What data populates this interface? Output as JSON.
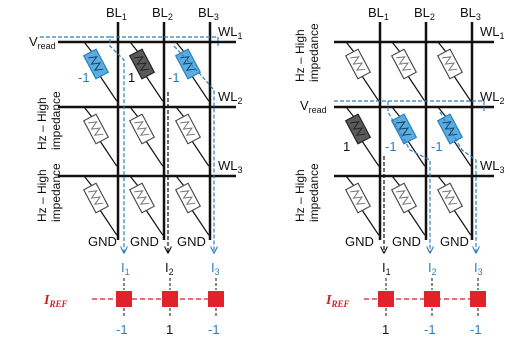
{
  "colors": {
    "wire": "#111111",
    "selected_cell": "#5aaedf",
    "high_cell": "#5a5a5a",
    "current_blue": "#2f7fc0",
    "iref_red": "#d11f26"
  },
  "panels": [
    {
      "bitlines": [
        {
          "name": "BL",
          "sub": "1"
        },
        {
          "name": "BL",
          "sub": "2"
        },
        {
          "name": "BL",
          "sub": "3"
        }
      ],
      "wordlines": [
        {
          "name": "WL",
          "sub": "1"
        },
        {
          "name": "WL",
          "sub": "2"
        },
        {
          "name": "WL",
          "sub": "3"
        }
      ],
      "vread": {
        "name": "V",
        "sub": "read"
      },
      "hz_labels": [
        {
          "line1": "Hz – High",
          "line2": "impedance"
        },
        {
          "line1": "Hz – High",
          "line2": "impedance"
        }
      ],
      "cell_values": [
        "-1",
        "1",
        "-1"
      ],
      "gnd": [
        "GND",
        "GND",
        "GND"
      ],
      "currents": [
        {
          "name": "I",
          "sub": "1"
        },
        {
          "name": "I",
          "sub": "2"
        },
        {
          "name": "I",
          "sub": "3"
        }
      ],
      "iref": {
        "name": "I",
        "sub": "REF"
      },
      "outputs": [
        "-1",
        "1",
        "-1"
      ]
    },
    {
      "bitlines": [
        {
          "name": "BL",
          "sub": "1"
        },
        {
          "name": "BL",
          "sub": "2"
        },
        {
          "name": "BL",
          "sub": "3"
        }
      ],
      "wordlines": [
        {
          "name": "WL",
          "sub": "1"
        },
        {
          "name": "WL",
          "sub": "2"
        },
        {
          "name": "WL",
          "sub": "3"
        }
      ],
      "vread": {
        "name": "V",
        "sub": "read"
      },
      "hz_labels": [
        {
          "line1": "Hz – High",
          "line2": "impedance"
        },
        {
          "line1": "Hz – High",
          "line2": "impedance"
        }
      ],
      "cell_values": [
        "1",
        "-1",
        "-1"
      ],
      "gnd": [
        "GND",
        "GND",
        "GND"
      ],
      "currents": [
        {
          "name": "I",
          "sub": "1"
        },
        {
          "name": "I",
          "sub": "2"
        },
        {
          "name": "I",
          "sub": "3"
        }
      ],
      "iref": {
        "name": "I",
        "sub": "REF"
      },
      "outputs": [
        "1",
        "-1",
        "-1"
      ]
    }
  ]
}
